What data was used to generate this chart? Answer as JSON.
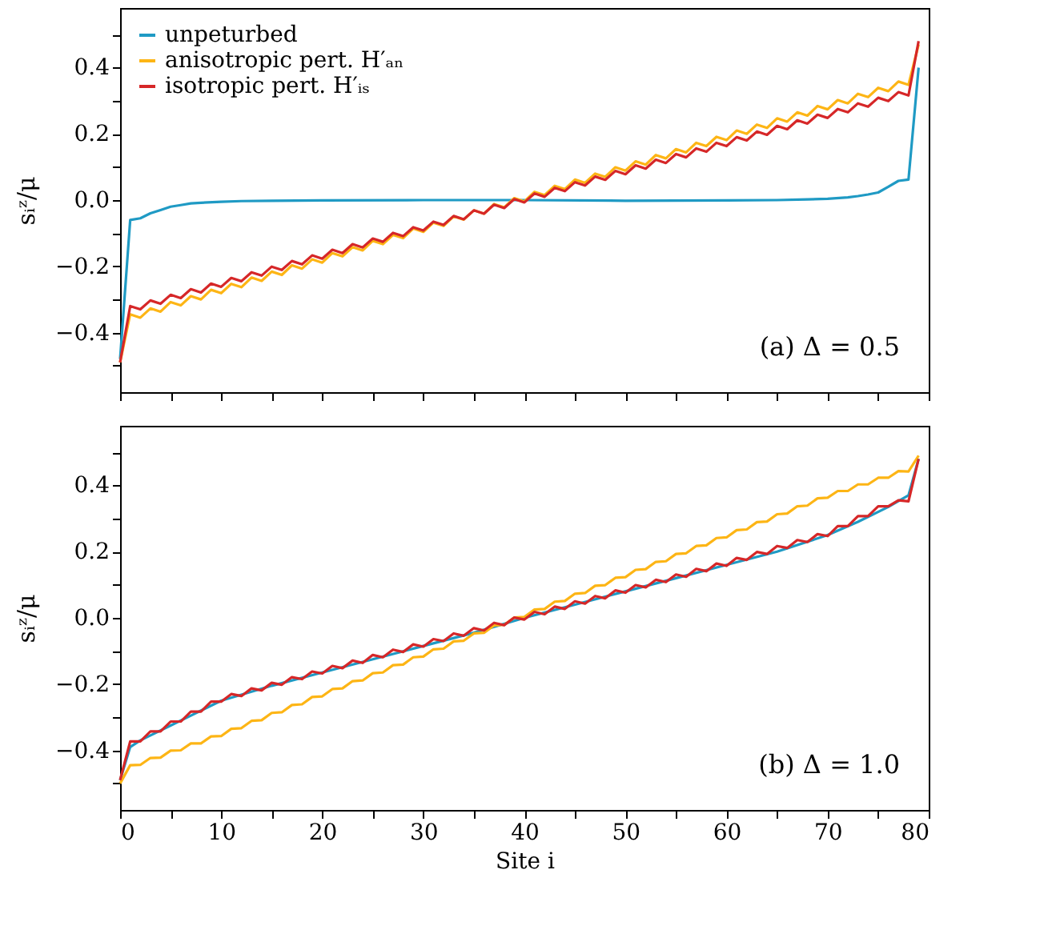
{
  "chart_data": [
    {
      "type": "line",
      "xlim": [
        0,
        80
      ],
      "ylim": [
        -0.58,
        0.58
      ],
      "xticks": [
        0,
        {
          "value": 5,
          "label": null
        },
        10,
        {
          "value": 15,
          "label": null
        },
        20,
        {
          "value": 25,
          "label": null
        },
        30,
        {
          "value": 35,
          "label": null
        },
        40,
        {
          "value": 45,
          "label": null
        },
        50,
        {
          "value": 55,
          "label": null
        },
        60,
        {
          "value": 65,
          "label": null
        },
        70,
        {
          "value": 75,
          "label": null
        },
        80
      ],
      "yticks": [
        {
          "value": -0.5,
          "label": null
        },
        -0.4,
        {
          "value": -0.3,
          "label": null
        },
        -0.2,
        {
          "value": -0.1,
          "label": null
        },
        {
          "value": 0,
          "label": "0.0"
        },
        {
          "value": 0.1,
          "label": null
        },
        0.2,
        {
          "value": 0.3,
          "label": null
        },
        0.4,
        {
          "value": 0.5,
          "label": null
        }
      ],
      "tick_labels": "y",
      "ylabel": "sᵢᶻ/μ",
      "legend": "top left",
      "grid": false,
      "line_style": "solid",
      "marker": "none",
      "annotations": [
        "(a) Δ = 0.5"
      ],
      "x": [
        0,
        1,
        2,
        3,
        4,
        5,
        6,
        7,
        8,
        9,
        10,
        11,
        12,
        13,
        14,
        15,
        16,
        17,
        18,
        19,
        20,
        21,
        22,
        23,
        24,
        25,
        26,
        27,
        28,
        29,
        30,
        31,
        32,
        33,
        34,
        35,
        36,
        37,
        38,
        39,
        40,
        41,
        42,
        43,
        44,
        45,
        46,
        47,
        48,
        49,
        50,
        51,
        52,
        53,
        54,
        55,
        56,
        57,
        58,
        59,
        60,
        61,
        62,
        63,
        64,
        65,
        66,
        67,
        68,
        69,
        70,
        71,
        72,
        73,
        74,
        75,
        76,
        77,
        78,
        79
      ],
      "series": [
        {
          "name": "unpeturbed",
          "color": "#1f9ac4",
          "x": [
            0,
            1,
            2,
            3,
            4,
            5,
            6,
            7,
            8,
            10,
            12,
            15,
            20,
            30,
            40,
            50,
            60,
            65,
            68,
            70,
            72,
            73,
            74,
            75,
            76,
            77,
            78,
            79
          ],
          "values": [
            -0.48,
            -0.06,
            -0.055,
            -0.04,
            -0.03,
            -0.02,
            -0.015,
            -0.01,
            -0.008,
            -0.005,
            -0.003,
            -0.002,
            -0.001,
            0.0,
            0.0,
            -0.002,
            -0.001,
            0.0,
            0.002,
            0.004,
            0.008,
            0.012,
            0.017,
            0.023,
            0.04,
            0.058,
            0.062,
            0.4
          ]
        },
        {
          "name": "anisotropic pert. H′ₐₙ",
          "color": "#fdb515",
          "values": [
            -0.49,
            -0.345,
            -0.355,
            -0.327,
            -0.337,
            -0.308,
            -0.318,
            -0.29,
            -0.3,
            -0.271,
            -0.281,
            -0.253,
            -0.263,
            -0.234,
            -0.244,
            -0.216,
            -0.226,
            -0.197,
            -0.207,
            -0.179,
            -0.189,
            -0.16,
            -0.17,
            -0.142,
            -0.152,
            -0.123,
            -0.133,
            -0.105,
            -0.115,
            -0.086,
            -0.096,
            -0.068,
            -0.078,
            -0.049,
            -0.059,
            -0.031,
            -0.041,
            -0.012,
            -0.022,
            0.006,
            -0.004,
            0.025,
            0.015,
            0.043,
            0.033,
            0.062,
            0.052,
            0.08,
            0.07,
            0.099,
            0.089,
            0.117,
            0.107,
            0.136,
            0.126,
            0.154,
            0.144,
            0.173,
            0.163,
            0.191,
            0.181,
            0.21,
            0.2,
            0.228,
            0.218,
            0.247,
            0.237,
            0.265,
            0.255,
            0.284,
            0.274,
            0.302,
            0.292,
            0.321,
            0.311,
            0.339,
            0.329,
            0.358,
            0.348,
            0.47
          ]
        },
        {
          "name": "isotropic pert. H′ᵢₛ",
          "color": "#d62728",
          "values": [
            -0.49,
            -0.32,
            -0.33,
            -0.303,
            -0.313,
            -0.286,
            -0.296,
            -0.269,
            -0.279,
            -0.252,
            -0.262,
            -0.235,
            -0.245,
            -0.218,
            -0.228,
            -0.201,
            -0.211,
            -0.184,
            -0.194,
            -0.167,
            -0.177,
            -0.15,
            -0.16,
            -0.133,
            -0.143,
            -0.116,
            -0.126,
            -0.099,
            -0.109,
            -0.082,
            -0.092,
            -0.065,
            -0.075,
            -0.048,
            -0.058,
            -0.031,
            -0.041,
            -0.014,
            -0.024,
            0.003,
            -0.007,
            0.02,
            0.01,
            0.037,
            0.027,
            0.054,
            0.044,
            0.071,
            0.061,
            0.088,
            0.078,
            0.105,
            0.095,
            0.122,
            0.112,
            0.139,
            0.129,
            0.156,
            0.146,
            0.173,
            0.163,
            0.19,
            0.18,
            0.207,
            0.197,
            0.224,
            0.214,
            0.241,
            0.231,
            0.258,
            0.248,
            0.275,
            0.265,
            0.292,
            0.282,
            0.309,
            0.299,
            0.326,
            0.316,
            0.48
          ]
        }
      ]
    },
    {
      "type": "line",
      "xlim": [
        0,
        80
      ],
      "ylim": [
        -0.58,
        0.58
      ],
      "xticks": [
        0,
        {
          "value": 5,
          "label": null
        },
        10,
        {
          "value": 15,
          "label": null
        },
        20,
        {
          "value": 25,
          "label": null
        },
        30,
        {
          "value": 35,
          "label": null
        },
        40,
        {
          "value": 45,
          "label": null
        },
        50,
        {
          "value": 55,
          "label": null
        },
        60,
        {
          "value": 65,
          "label": null
        },
        70,
        {
          "value": 75,
          "label": null
        },
        80
      ],
      "yticks": [
        {
          "value": -0.5,
          "label": null
        },
        -0.4,
        {
          "value": -0.3,
          "label": null
        },
        -0.2,
        {
          "value": -0.1,
          "label": null
        },
        {
          "value": 0,
          "label": "0.0"
        },
        {
          "value": 0.1,
          "label": null
        },
        0.2,
        {
          "value": 0.3,
          "label": null
        },
        0.4,
        {
          "value": 0.5,
          "label": null
        }
      ],
      "xlabel": "Site i",
      "ylabel": "sᵢᶻ/μ",
      "legend": "top left",
      "grid": false,
      "line_style": "solid",
      "marker": "none",
      "annotations": [
        "(b) Δ = 1.0"
      ],
      "x": [
        0,
        1,
        2,
        3,
        4,
        5,
        6,
        7,
        8,
        9,
        10,
        11,
        12,
        13,
        14,
        15,
        16,
        17,
        18,
        19,
        20,
        21,
        22,
        23,
        24,
        25,
        26,
        27,
        28,
        29,
        30,
        31,
        32,
        33,
        34,
        35,
        36,
        37,
        38,
        39,
        40,
        41,
        42,
        43,
        44,
        45,
        46,
        47,
        48,
        49,
        50,
        51,
        52,
        53,
        54,
        55,
        56,
        57,
        58,
        59,
        60,
        61,
        62,
        63,
        64,
        65,
        66,
        67,
        68,
        69,
        70,
        71,
        72,
        73,
        74,
        75,
        76,
        77,
        78,
        79
      ],
      "series": [
        {
          "name": "unpeturbed",
          "color": "#1f9ac4",
          "x": [
            0,
            1,
            2,
            3,
            5,
            7,
            10,
            15,
            20,
            25,
            30,
            35,
            40,
            45,
            50,
            55,
            60,
            65,
            70,
            73,
            76,
            78,
            79
          ],
          "values": [
            -0.49,
            -0.39,
            -0.37,
            -0.355,
            -0.325,
            -0.295,
            -0.25,
            -0.205,
            -0.165,
            -0.125,
            -0.085,
            -0.045,
            0.0,
            0.04,
            0.08,
            0.12,
            0.16,
            0.2,
            0.25,
            0.29,
            0.335,
            0.37,
            0.48
          ]
        },
        {
          "name": "anisotropic pert. H′ₐₙ",
          "color": "#fdb515",
          "values": [
            -0.5,
            -0.445,
            -0.444,
            -0.423,
            -0.422,
            -0.401,
            -0.4,
            -0.379,
            -0.379,
            -0.358,
            -0.357,
            -0.335,
            -0.333,
            -0.311,
            -0.309,
            -0.287,
            -0.285,
            -0.263,
            -0.261,
            -0.239,
            -0.237,
            -0.215,
            -0.213,
            -0.191,
            -0.189,
            -0.167,
            -0.165,
            -0.143,
            -0.141,
            -0.119,
            -0.117,
            -0.095,
            -0.093,
            -0.071,
            -0.069,
            -0.047,
            -0.045,
            -0.023,
            -0.021,
            0.001,
            0.003,
            0.025,
            0.027,
            0.049,
            0.051,
            0.073,
            0.075,
            0.097,
            0.099,
            0.121,
            0.123,
            0.145,
            0.147,
            0.169,
            0.171,
            0.193,
            0.195,
            0.217,
            0.219,
            0.241,
            0.243,
            0.265,
            0.267,
            0.289,
            0.291,
            0.313,
            0.315,
            0.337,
            0.339,
            0.361,
            0.363,
            0.383,
            0.383,
            0.403,
            0.403,
            0.423,
            0.423,
            0.443,
            0.442,
            0.49
          ]
        },
        {
          "name": "isotropic pert. H′ᵢₛ",
          "color": "#d62728",
          "values": [
            -0.49,
            -0.373,
            -0.373,
            -0.343,
            -0.343,
            -0.313,
            -0.313,
            -0.283,
            -0.283,
            -0.253,
            -0.253,
            -0.23,
            -0.236,
            -0.213,
            -0.219,
            -0.196,
            -0.202,
            -0.179,
            -0.185,
            -0.162,
            -0.168,
            -0.145,
            -0.152,
            -0.129,
            -0.136,
            -0.112,
            -0.119,
            -0.096,
            -0.103,
            -0.08,
            -0.087,
            -0.064,
            -0.07,
            -0.047,
            -0.054,
            -0.031,
            -0.038,
            -0.015,
            -0.022,
            0.001,
            -0.005,
            0.018,
            0.011,
            0.034,
            0.027,
            0.05,
            0.043,
            0.066,
            0.059,
            0.083,
            0.076,
            0.099,
            0.092,
            0.115,
            0.108,
            0.131,
            0.124,
            0.148,
            0.141,
            0.164,
            0.157,
            0.181,
            0.175,
            0.199,
            0.193,
            0.217,
            0.211,
            0.235,
            0.229,
            0.253,
            0.247,
            0.277,
            0.277,
            0.307,
            0.307,
            0.337,
            0.337,
            0.355,
            0.352,
            0.48
          ]
        }
      ]
    }
  ]
}
